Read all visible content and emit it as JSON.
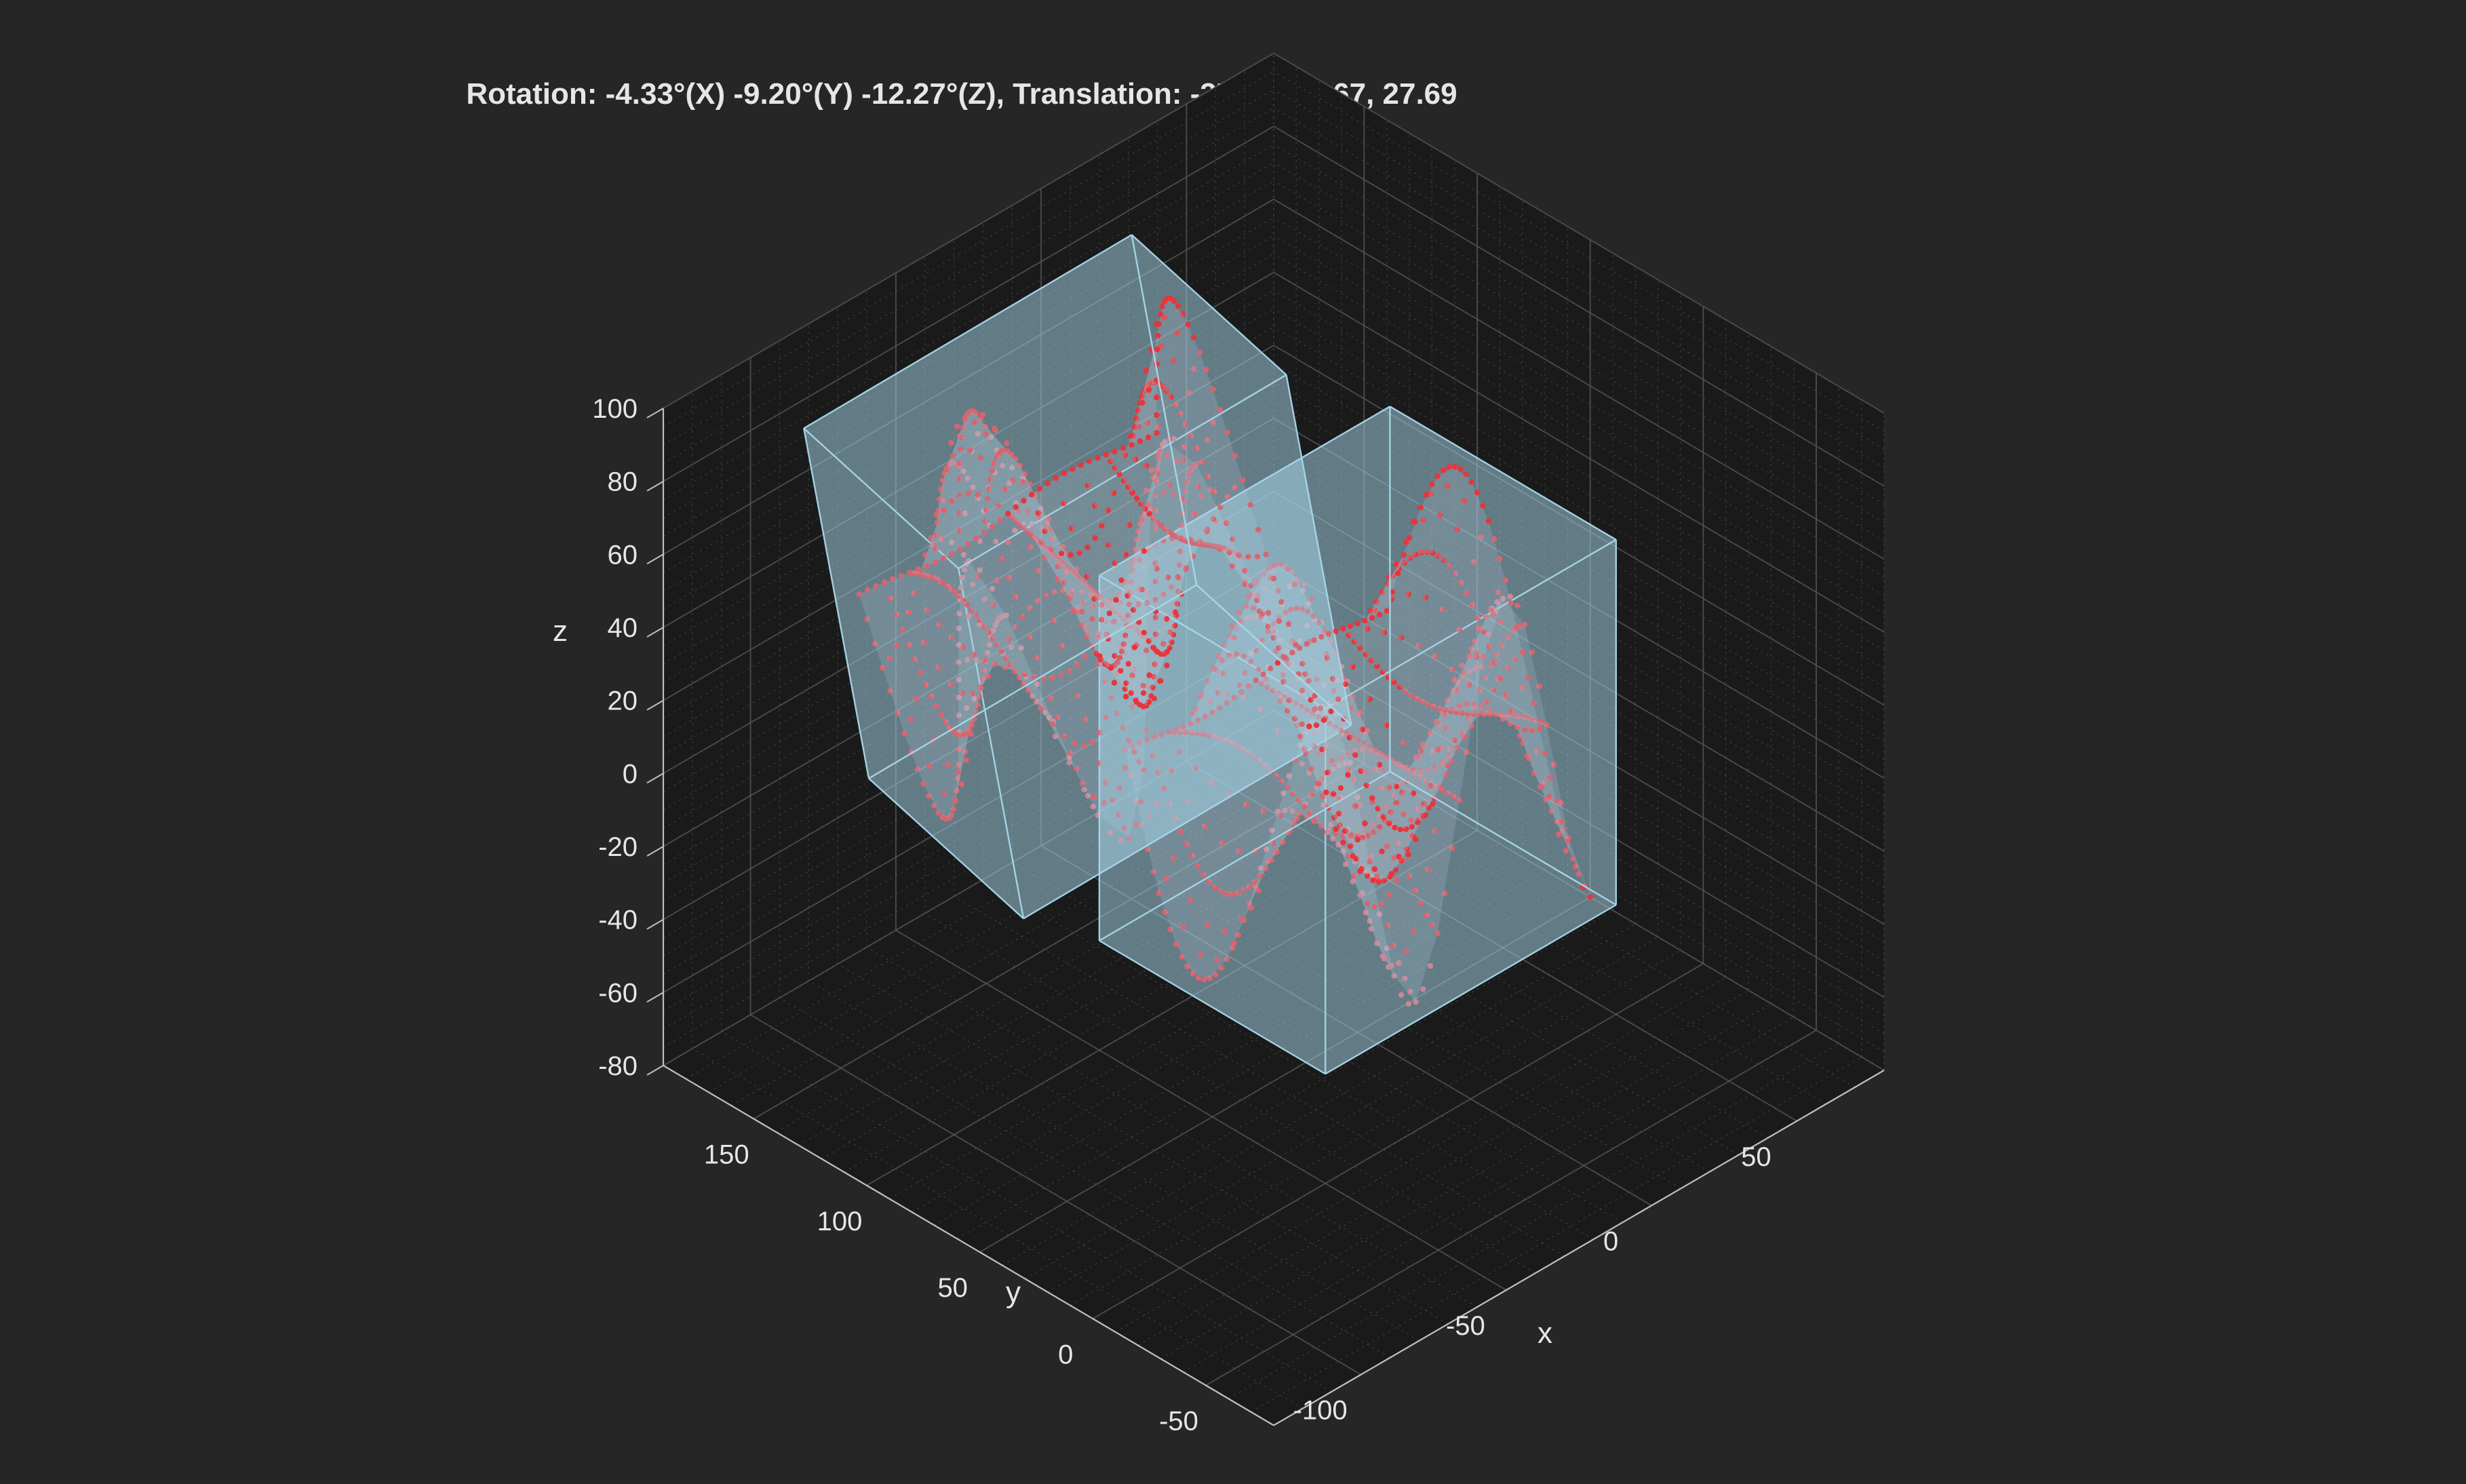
{
  "chart_data": {
    "type": "scatter",
    "title": "Rotation: -4.33°(X) -9.20°(Y) -12.27°(Z), Translation: -37.35, 91.67, 27.69",
    "xlabel": "x",
    "ylabel": "y",
    "zlabel": "z",
    "xlim": [
      -130,
      80
    ],
    "ylim": [
      -80,
      190
    ],
    "zlim": [
      -80,
      100
    ],
    "x_ticks": [
      "-100",
      "-50",
      "0",
      "50"
    ],
    "y_ticks": [
      "-50",
      "0",
      "50",
      "100",
      "150"
    ],
    "z_ticks": [
      "-80",
      "-60",
      "-40",
      "-20",
      "0",
      "20",
      "40",
      "60",
      "80",
      "100"
    ],
    "grid": true,
    "background_color": "#262626",
    "pane_color": "#1a1a1a",
    "grid_color": "#555555",
    "box_color": "#a8d8ea",
    "point_color": "#e8353d",
    "surface_color": "#b4c6d2",
    "series": [
      {
        "kind": "box",
        "x_range": [
          -50,
          50
        ],
        "y_range": [
          0,
          100
        ],
        "z_range": [
          -50,
          50
        ],
        "transform_applied": {
          "rotation_deg": [
            -4.33,
            -9.2,
            -12.27
          ],
          "translation": [
            -37.35,
            91.67,
            27.69
          ]
        }
      },
      {
        "kind": "box",
        "x_range": [
          -50,
          50
        ],
        "y_range": [
          0,
          100
        ],
        "z_range": [
          -50,
          50
        ],
        "transform_applied": null
      },
      {
        "kind": "surface_points",
        "function": "z = 50*sin(x/10)*cos(y/20)",
        "x_range": [
          -45,
          45
        ],
        "y_range": [
          5,
          95
        ],
        "transform_applied": {
          "rotation_deg": [
            -4.33,
            -9.2,
            -12.27
          ],
          "translation": [
            -37.35,
            91.67,
            27.69
          ]
        }
      },
      {
        "kind": "surface_points",
        "function": "z = 50*sin(x/10)*cos(y/20)",
        "x_range": [
          -45,
          45
        ],
        "y_range": [
          5,
          95
        ],
        "transform_applied": null
      }
    ]
  }
}
